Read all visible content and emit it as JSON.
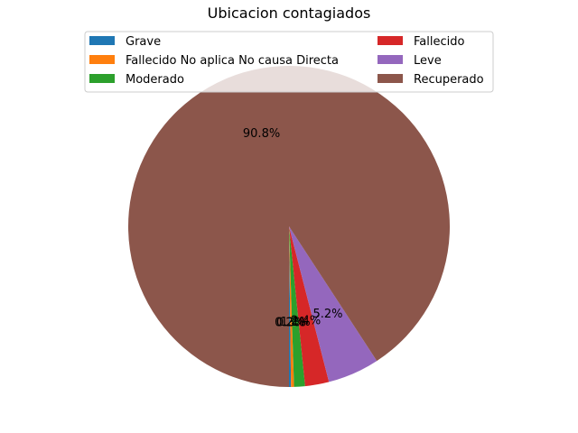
{
  "chart_data": {
    "type": "pie",
    "title": "Ubicacion contagiados",
    "categories": [
      "Grave",
      "Fallecido No aplica No causa Directa",
      "Moderado",
      "Fallecido",
      "Leve",
      "Recuperado"
    ],
    "values": [
      0.2,
      0.3,
      1.1,
      2.4,
      5.2,
      90.8
    ],
    "colors": [
      "#1f77b4",
      "#ff7f0e",
      "#2ca02c",
      "#d62728",
      "#9467bd",
      "#8c564b"
    ],
    "pct_labels": [
      "0.2%",
      "0.3%",
      "1.1%",
      "2.4%",
      "5.2%",
      "90.8%"
    ],
    "start_angle_deg": 270,
    "legend": {
      "placement": "top",
      "columns": 2
    }
  }
}
